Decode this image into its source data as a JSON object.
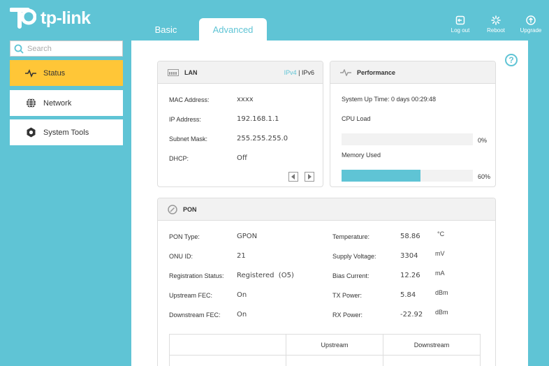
{
  "header": {
    "brand": "tp-link",
    "tabs": [
      {
        "label": "Basic"
      },
      {
        "label": "Advanced"
      }
    ],
    "actions": [
      {
        "label": "Log out"
      },
      {
        "label": "Reboot"
      },
      {
        "label": "Upgrade"
      }
    ]
  },
  "sidebar": {
    "search_placeholder": "Search",
    "items": [
      {
        "label": "Status",
        "icon": "pulse-icon"
      },
      {
        "label": "Network",
        "icon": "globe-icon"
      },
      {
        "label": "System Tools",
        "icon": "gear-icon"
      }
    ]
  },
  "colors": {
    "accent": "#5fc4d5",
    "active": "#ffc637"
  },
  "lan": {
    "title": "LAN",
    "ipv4": "IPv4",
    "sep": "|",
    "ipv6": "IPv6",
    "mac_label": "MAC Address:",
    "mac": "xxxx",
    "ip_label": "IP Address:",
    "ip": "192.168.1.1",
    "mask_label": "Subnet Mask:",
    "mask": "255.255.255.0",
    "dhcp_label": "DHCP:",
    "dhcp": "Off"
  },
  "performance": {
    "title": "Performance",
    "uptime": "System Up Time: 0 days 00:29:48",
    "cpu_label": "CPU Load",
    "cpu_percent": 0,
    "cpu_text": "0%",
    "mem_label": "Memory Used",
    "mem_percent": 60,
    "mem_text": "60%"
  },
  "pon": {
    "title": "PON",
    "type_label": "PON Type:",
    "type": "GPON",
    "onu_label": "ONU ID:",
    "onu": "21",
    "reg_label": "Registration Status:",
    "reg": "Registered  (O5)",
    "ufec_label": "Upstream FEC:",
    "ufec": "On",
    "dfec_label": "Downstream FEC:",
    "dfec": "On",
    "temp_label": "Temperature:",
    "temp": "58.86",
    "temp_unit": "°C",
    "volt_label": "Supply Voltage:",
    "volt": "3304",
    "volt_unit": "mV",
    "bias_label": "Bias Current:",
    "bias": "12.26",
    "bias_unit": "mA",
    "tx_label": "TX Power:",
    "tx": "5.84",
    "tx_unit": "dBm",
    "rx_label": "RX Power:",
    "rx": "-22.92",
    "rx_unit": "dBm",
    "table_headers": [
      "",
      "Upstream",
      "Downstream"
    ]
  }
}
